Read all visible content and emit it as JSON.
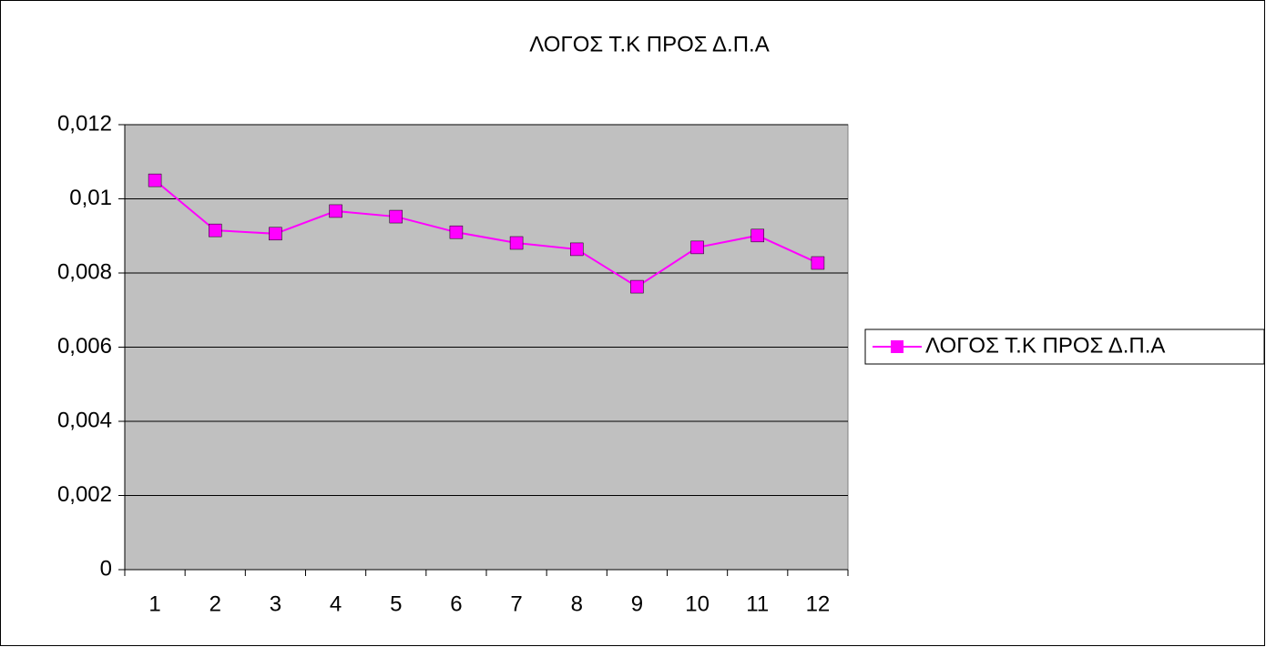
{
  "chart_data": {
    "type": "line",
    "title": "ΛΟΓΟΣ Τ.Κ ΠΡΟΣ Δ.Π.Α",
    "categories": [
      "1",
      "2",
      "3",
      "4",
      "5",
      "6",
      "7",
      "8",
      "9",
      "10",
      "11",
      "12"
    ],
    "series": [
      {
        "name": "ΛΟΓΟΣ Τ.Κ ΠΡΟΣ Δ.Π.Α",
        "color": "#ff00ff",
        "values": [
          0.0105,
          0.00915,
          0.00906,
          0.00967,
          0.00952,
          0.0091,
          0.00881,
          0.00864,
          0.00763,
          0.00869,
          0.00901,
          0.00827
        ]
      }
    ],
    "ylim": [
      0,
      0.012
    ],
    "yticks": [
      0,
      {
        "value": 0.002,
        "label": "0,002"
      },
      {
        "value": 0.004,
        "label": "0,004"
      },
      {
        "value": 0.006,
        "label": "0,006"
      },
      {
        "value": 0.008,
        "label": "0,008"
      },
      {
        "value": 0.01,
        "label": "0,01"
      },
      {
        "value": 0.012,
        "label": "0,012"
      }
    ],
    "grid": true,
    "legend": "right",
    "plot_background": "#c0c0c0"
  }
}
